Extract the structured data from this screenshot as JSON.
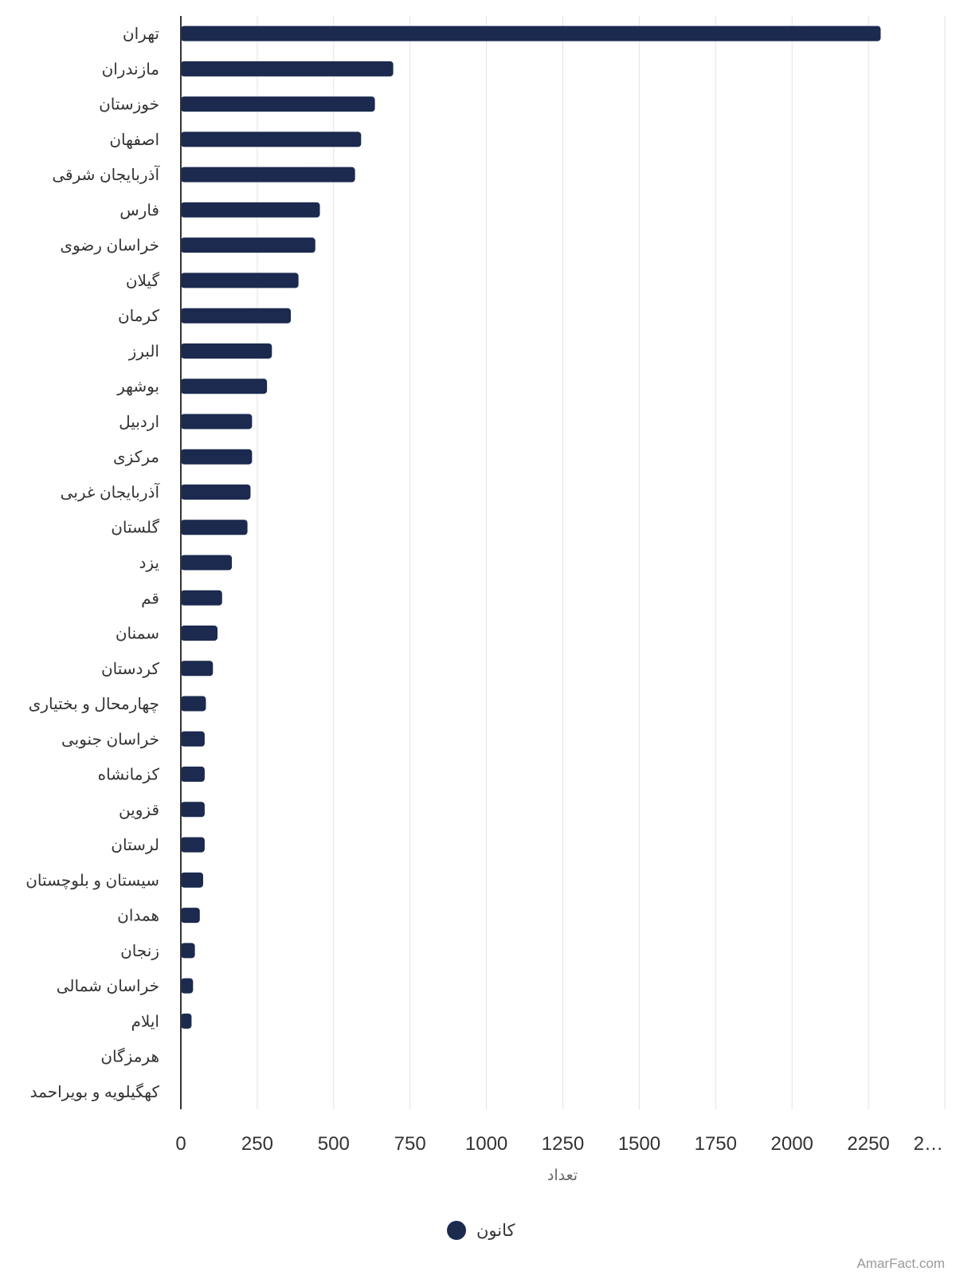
{
  "chart_data": {
    "type": "bar",
    "orientation": "horizontal",
    "categories": [
      "تهران",
      "مازندران",
      "خوزستان",
      "اصفهان",
      "آذربایجان شرقی",
      "فارس",
      "خراسان رضوی",
      "گیلان",
      "کرمان",
      "البرز",
      "بوشهر",
      "اردبیل",
      "مرکزی",
      "آذربایجان غربی",
      "گلستان",
      "یزد",
      "قم",
      "سمنان",
      "کردستان",
      "چهارمحال و بختیاری",
      "خراسان جنوبی",
      "کزمانشاه",
      "قزوین",
      "لرستان",
      "سیستان و بلوچستان",
      "همدان",
      "زنجان",
      "خراسان شمالی",
      "ایلام",
      "هرمزگان",
      "کهگیلویه و بویراحمد"
    ],
    "series": [
      {
        "name": "کانون",
        "color": "#1b2a4e",
        "values": [
          2290,
          695,
          635,
          590,
          570,
          455,
          440,
          385,
          360,
          298,
          282,
          233,
          233,
          228,
          218,
          167,
          135,
          120,
          105,
          82,
          78,
          78,
          78,
          78,
          73,
          62,
          46,
          40,
          35,
          0,
          0
        ]
      }
    ],
    "xlabel": "تعداد",
    "ylabel": "",
    "xlim": [
      0,
      2500
    ],
    "tick_labels": [
      "0",
      "250",
      "500",
      "750",
      "1000",
      "1250",
      "1500",
      "1750",
      "2000",
      "2250",
      "2…"
    ],
    "grid": true,
    "legend_position": "bottom-center"
  },
  "credit": "AmarFact.com"
}
